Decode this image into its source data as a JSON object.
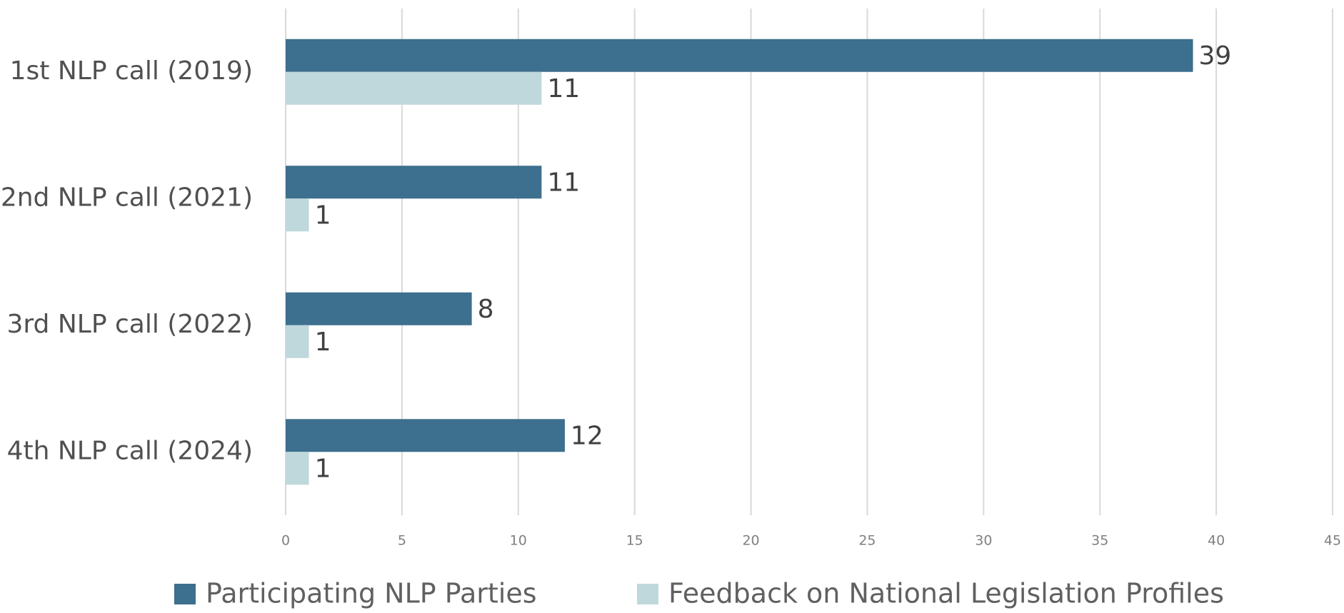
{
  "chart_data": {
    "type": "bar",
    "orientation": "horizontal",
    "categories": [
      "1st NLP call (2019)",
      "2nd NLP call (2021)",
      "3rd NLP call (2022)",
      "4th NLP call (2024)"
    ],
    "series": [
      {
        "name": "Participating NLP Parties",
        "color": "#3d6f8e",
        "values": [
          39,
          11,
          8,
          12
        ]
      },
      {
        "name": "Feedback on National Legislation Profiles",
        "color": "#bfd8dc",
        "values": [
          11,
          1,
          1,
          1
        ]
      }
    ],
    "xlim": [
      0,
      45
    ],
    "xticks": [
      0,
      5,
      10,
      15,
      20,
      25,
      30,
      35,
      40,
      45
    ],
    "grid": true,
    "legend": "bottom"
  }
}
